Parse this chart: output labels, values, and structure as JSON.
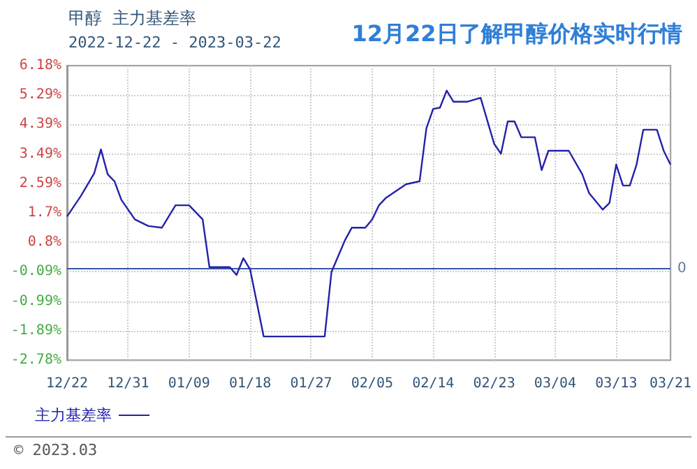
{
  "chart_data": {
    "type": "line",
    "title": "甲醇  主力基差率",
    "subtitle": "2022-12-22 - 2023-03-22",
    "annotations": [
      "12月22日了解甲醇价格实时行情",
      "© 2023.03"
    ],
    "x": [
      "2022-12-22",
      "2022-12-24",
      "2022-12-26",
      "2022-12-27",
      "2022-12-28",
      "2022-12-29",
      "2022-12-30",
      "2023-01-01",
      "2023-01-03",
      "2023-01-05",
      "2023-01-07",
      "2023-01-09",
      "2023-01-11",
      "2023-01-12",
      "2023-01-15",
      "2023-01-16",
      "2023-01-17",
      "2023-01-18",
      "2023-01-20",
      "2023-01-29",
      "2023-01-30",
      "2023-02-01",
      "2023-02-02",
      "2023-02-04",
      "2023-02-05",
      "2023-02-06",
      "2023-02-07",
      "2023-02-10",
      "2023-02-12",
      "2023-02-13",
      "2023-02-14",
      "2023-02-15",
      "2023-02-16",
      "2023-02-17",
      "2023-02-19",
      "2023-02-21",
      "2023-02-23",
      "2023-02-24",
      "2023-02-25",
      "2023-02-26",
      "2023-02-27",
      "2023-03-01",
      "2023-03-02",
      "2023-03-03",
      "2023-03-06",
      "2023-03-08",
      "2023-03-09",
      "2023-03-11",
      "2023-03-12",
      "2023-03-13",
      "2023-03-14",
      "2023-03-15",
      "2023-03-16",
      "2023-03-17",
      "2023-03-19",
      "2023-03-20",
      "2023-03-21"
    ],
    "series": [
      {
        "name": "主力基差率",
        "color": "#2222aa",
        "values": [
          1.59,
          2.2,
          2.9,
          3.63,
          2.87,
          2.66,
          2.1,
          1.5,
          1.3,
          1.25,
          1.93,
          1.93,
          1.5,
          0.05,
          0.05,
          -0.19,
          0.32,
          -0.02,
          -2.06,
          -2.06,
          -0.1,
          0.87,
          1.25,
          1.25,
          1.5,
          1.93,
          2.15,
          2.57,
          2.66,
          4.27,
          4.86,
          4.9,
          5.42,
          5.08,
          5.08,
          5.2,
          3.8,
          3.5,
          4.48,
          4.48,
          4.0,
          4.0,
          3.0,
          3.59,
          3.59,
          2.87,
          2.3,
          1.8,
          2.0,
          3.17,
          2.53,
          2.53,
          3.17,
          4.23,
          4.23,
          3.59,
          3.17
        ]
      }
    ],
    "xlim": [
      "2022-12-22",
      "2023-03-21"
    ],
    "xticks": [
      {
        "value": "2022-12-22",
        "label": "12/22"
      },
      {
        "value": "2022-12-31",
        "label": "12/31"
      },
      {
        "value": "2023-01-09",
        "label": "01/09"
      },
      {
        "value": "2023-01-18",
        "label": "01/18"
      },
      {
        "value": "2023-01-27",
        "label": "01/27"
      },
      {
        "value": "2023-02-05",
        "label": "02/05"
      },
      {
        "value": "2023-02-14",
        "label": "02/14"
      },
      {
        "value": "2023-02-23",
        "label": "02/23"
      },
      {
        "value": "2023-03-04",
        "label": "03/04"
      },
      {
        "value": "2023-03-13",
        "label": "03/13"
      },
      {
        "value": "2023-03-21",
        "label": "03/21"
      }
    ],
    "ylim": [
      -2.78,
      6.18
    ],
    "yticks": [
      {
        "value": -2.78,
        "label": "-2.78%"
      },
      {
        "value": -1.89,
        "label": "-1.89%"
      },
      {
        "value": -0.99,
        "label": "-0.99%"
      },
      {
        "value": -0.09,
        "label": "-0.09%"
      },
      {
        "value": 0.8,
        "label": "0.8%"
      },
      {
        "value": 1.7,
        "label": "1.7%"
      },
      {
        "value": 2.59,
        "label": "2.59%"
      },
      {
        "value": 3.49,
        "label": "3.49%"
      },
      {
        "value": 4.39,
        "label": "4.39%"
      },
      {
        "value": 5.29,
        "label": "5.29%"
      },
      {
        "value": 6.18,
        "label": "6.18%"
      }
    ],
    "ref_lines": [
      {
        "axis": "y",
        "value": 0,
        "label": "0",
        "color": "#3355aa"
      }
    ],
    "grid": true,
    "legend": "bottom left",
    "marker": "none",
    "line_style": "solid"
  }
}
